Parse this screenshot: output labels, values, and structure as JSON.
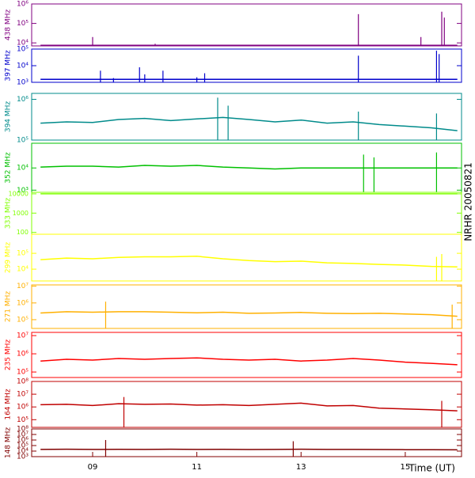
{
  "chart_data": {
    "type": "line",
    "title": "NRHR 20050821",
    "xlabel": "Time (UT)",
    "xlim": [
      7.83,
      16.08
    ],
    "xticks": [
      {
        "value": 9,
        "label": "09"
      },
      {
        "value": 11,
        "label": "11"
      },
      {
        "value": 13,
        "label": "13"
      },
      {
        "value": 15,
        "label": "15"
      }
    ],
    "log_y": true,
    "panels": [
      {
        "label": "438 MHz",
        "color": "#800080",
        "ylim": [
          7000,
          1000000
        ],
        "yticks": [
          {
            "value": 10000,
            "label": "10⁴"
          },
          {
            "value": 100000,
            "label": "10⁵"
          },
          {
            "value": 1000000,
            "label": "10⁶"
          }
        ],
        "x": [
          8,
          16
        ],
        "values": [
          7500,
          7500
        ],
        "spikes": {
          "x": [
            9.0,
            10.2,
            14.1,
            15.3,
            15.7,
            15.75
          ],
          "values": [
            20000,
            9000,
            300000,
            20000,
            400000,
            200000
          ]
        }
      },
      {
        "label": "397 MHz",
        "color": "#0000cc",
        "ylim": [
          1000,
          100000
        ],
        "yticks": [
          {
            "value": 1000,
            "label": "10³"
          },
          {
            "value": 10000,
            "label": "10⁴"
          },
          {
            "value": 100000,
            "label": "10⁵"
          }
        ],
        "x": [
          8,
          16
        ],
        "values": [
          1500,
          1500
        ],
        "spikes": {
          "x": [
            9.15,
            9.4,
            9.9,
            10.0,
            10.35,
            11.0,
            11.15,
            14.1,
            15.6,
            15.65
          ],
          "values": [
            5000,
            1800,
            8000,
            3000,
            5000,
            2000,
            3500,
            40000,
            80000,
            50000
          ]
        }
      },
      {
        "label": "394 MHz",
        "color": "#008b8b",
        "ylim": [
          100000,
          1400000
        ],
        "yticks": [
          {
            "value": 100000,
            "label": "10⁵"
          },
          {
            "value": 1000000,
            "label": "10⁶"
          }
        ],
        "x": [
          8,
          8.5,
          9,
          9.5,
          10,
          10.5,
          11,
          11.5,
          12,
          12.5,
          13,
          13.5,
          14,
          14.5,
          15,
          15.5,
          16
        ],
        "values": [
          260000,
          280000,
          270000,
          320000,
          340000,
          300000,
          330000,
          360000,
          320000,
          280000,
          310000,
          260000,
          280000,
          240000,
          220000,
          200000,
          170000
        ],
        "spikes": {
          "x": [
            11.4,
            11.6,
            14.1,
            15.6
          ],
          "values": [
            1100000,
            700000,
            500000,
            450000
          ]
        }
      },
      {
        "label": "352 MHz",
        "color": "#00c000",
        "ylim": [
          800,
          130000
        ],
        "yticks": [
          {
            "value": 1000,
            "label": "10³"
          },
          {
            "value": 10000,
            "label": "10⁴"
          }
        ],
        "x": [
          8,
          8.5,
          9,
          9.5,
          10,
          10.5,
          11,
          11.5,
          12,
          12.5,
          13,
          13.5,
          14,
          14.5,
          15,
          15.5,
          16
        ],
        "values": [
          11000,
          12000,
          12000,
          11000,
          13000,
          12000,
          13000,
          11000,
          10000,
          9000,
          10000,
          10000,
          10000,
          10000,
          10000,
          10000,
          10000
        ],
        "spikes": {
          "x": [
            14.2,
            14.4,
            15.6
          ],
          "values": [
            40000,
            30000,
            50000
          ]
        }
      },
      {
        "label": "333 MHz",
        "color": "#80ff00",
        "ylim": [
          80,
          12000
        ],
        "yticks": [
          100,
          1000,
          10000
        ],
        "x": [
          8,
          8.5,
          9,
          9.5,
          10,
          10.5,
          11,
          11.5,
          12,
          12.5,
          13,
          13.5,
          14,
          14.5,
          15,
          15.5,
          16
        ],
        "values": [
          10000,
          10000,
          10000,
          10000,
          10000,
          10000,
          10000,
          10000,
          10000,
          10000,
          10000,
          10000,
          10000,
          10000,
          10000,
          10000,
          10000
        ]
      },
      {
        "label": "299 MHz",
        "color": "#ffff00",
        "ylim": [
          1800,
          1600000
        ],
        "yticks": [
          {
            "value": 10000,
            "label": "10⁴"
          },
          {
            "value": 100000,
            "label": "10⁵"
          }
        ],
        "x": [
          8,
          8.5,
          9,
          9.5,
          10,
          10.5,
          11,
          11.5,
          12,
          12.5,
          13,
          13.5,
          14,
          14.5,
          15,
          15.5,
          16
        ],
        "values": [
          40000,
          50000,
          45000,
          55000,
          60000,
          60000,
          65000,
          45000,
          35000,
          30000,
          32000,
          25000,
          23000,
          20000,
          18000,
          15000,
          14000
        ],
        "spikes": {
          "x": [
            15.6,
            15.7
          ],
          "values": [
            60000,
            90000
          ]
        }
      },
      {
        "label": "271 MHz",
        "color": "#ffb000",
        "ylim": [
          30000,
          12000000
        ],
        "yticks": [
          {
            "value": 100000,
            "label": "10⁵"
          },
          {
            "value": 1000000,
            "label": "10⁶"
          },
          {
            "value": 10000000,
            "label": "10⁷"
          }
        ],
        "x": [
          8,
          8.5,
          9,
          9.5,
          10,
          10.5,
          11,
          11.5,
          12,
          12.5,
          13,
          13.5,
          14,
          14.5,
          15,
          15.5,
          16
        ],
        "values": [
          250000,
          300000,
          280000,
          300000,
          300000,
          280000,
          260000,
          280000,
          240000,
          250000,
          270000,
          240000,
          230000,
          240000,
          220000,
          200000,
          160000
        ],
        "spikes": {
          "x": [
            9.25,
            15.9
          ],
          "values": [
            1200000,
            800000
          ]
        }
      },
      {
        "label": "235 MHz",
        "color": "#ff0000",
        "ylim": [
          50000,
          15000000
        ],
        "yticks": [
          {
            "value": 100000,
            "label": "10⁵"
          },
          {
            "value": 1000000,
            "label": "10⁶"
          },
          {
            "value": 10000000,
            "label": "10⁷"
          }
        ],
        "x": [
          8,
          8.5,
          9,
          9.5,
          10,
          10.5,
          11,
          11.5,
          12,
          12.5,
          13,
          13.5,
          14,
          14.5,
          15,
          15.5,
          16
        ],
        "values": [
          400000,
          500000,
          450000,
          550000,
          500000,
          550000,
          600000,
          500000,
          450000,
          500000,
          400000,
          450000,
          550000,
          450000,
          350000,
          300000,
          250000
        ]
      },
      {
        "label": "164 MHz",
        "color": "#c00000",
        "ylim": [
          25000,
          100000000
        ],
        "yticks": [
          {
            "value": 100000,
            "label": "10⁵"
          },
          {
            "value": 1000000,
            "label": "10⁶"
          },
          {
            "value": 10000000,
            "label": "10⁷"
          },
          {
            "value": 100000000,
            "label": "10⁸"
          }
        ],
        "x": [
          8,
          8.5,
          9,
          9.5,
          10,
          10.5,
          11,
          11.5,
          12,
          12.5,
          13,
          13.5,
          14,
          14.5,
          15,
          15.5,
          16
        ],
        "values": [
          1500000,
          1600000,
          1300000,
          1800000,
          1600000,
          1700000,
          1400000,
          1500000,
          1300000,
          1600000,
          2000000,
          1200000,
          1300000,
          800000,
          700000,
          600000,
          500000
        ],
        "spikes": {
          "x": [
            9.6,
            15.7
          ],
          "values": [
            6000000,
            3000000
          ]
        }
      },
      {
        "label": "148 MHz",
        "color": "#800000",
        "ylim": [
          1000,
          100000000
        ],
        "yticks": [
          {
            "value": 1000,
            "label": "10³"
          },
          {
            "value": 10000,
            "label": "10⁴"
          },
          {
            "value": 100000,
            "label": "10⁵"
          },
          {
            "value": 1000000,
            "label": "10⁶"
          },
          {
            "value": 10000000,
            "label": "10⁷"
          },
          {
            "value": 100000000,
            "label": "10⁸"
          }
        ],
        "x": [
          8,
          8.5,
          9,
          9.5,
          10,
          10.5,
          11,
          11.5,
          12,
          12.5,
          13,
          13.5,
          14,
          14.5,
          15,
          15.5,
          16
        ],
        "values": [
          20000,
          22000,
          20000,
          21000,
          20000,
          22000,
          20000,
          21000,
          19000,
          20000,
          22000,
          20000,
          20000,
          19000,
          18000,
          18000,
          17000
        ],
        "spikes": {
          "x": [
            9.25,
            12.85
          ],
          "values": [
            1000000,
            600000
          ]
        }
      }
    ]
  }
}
